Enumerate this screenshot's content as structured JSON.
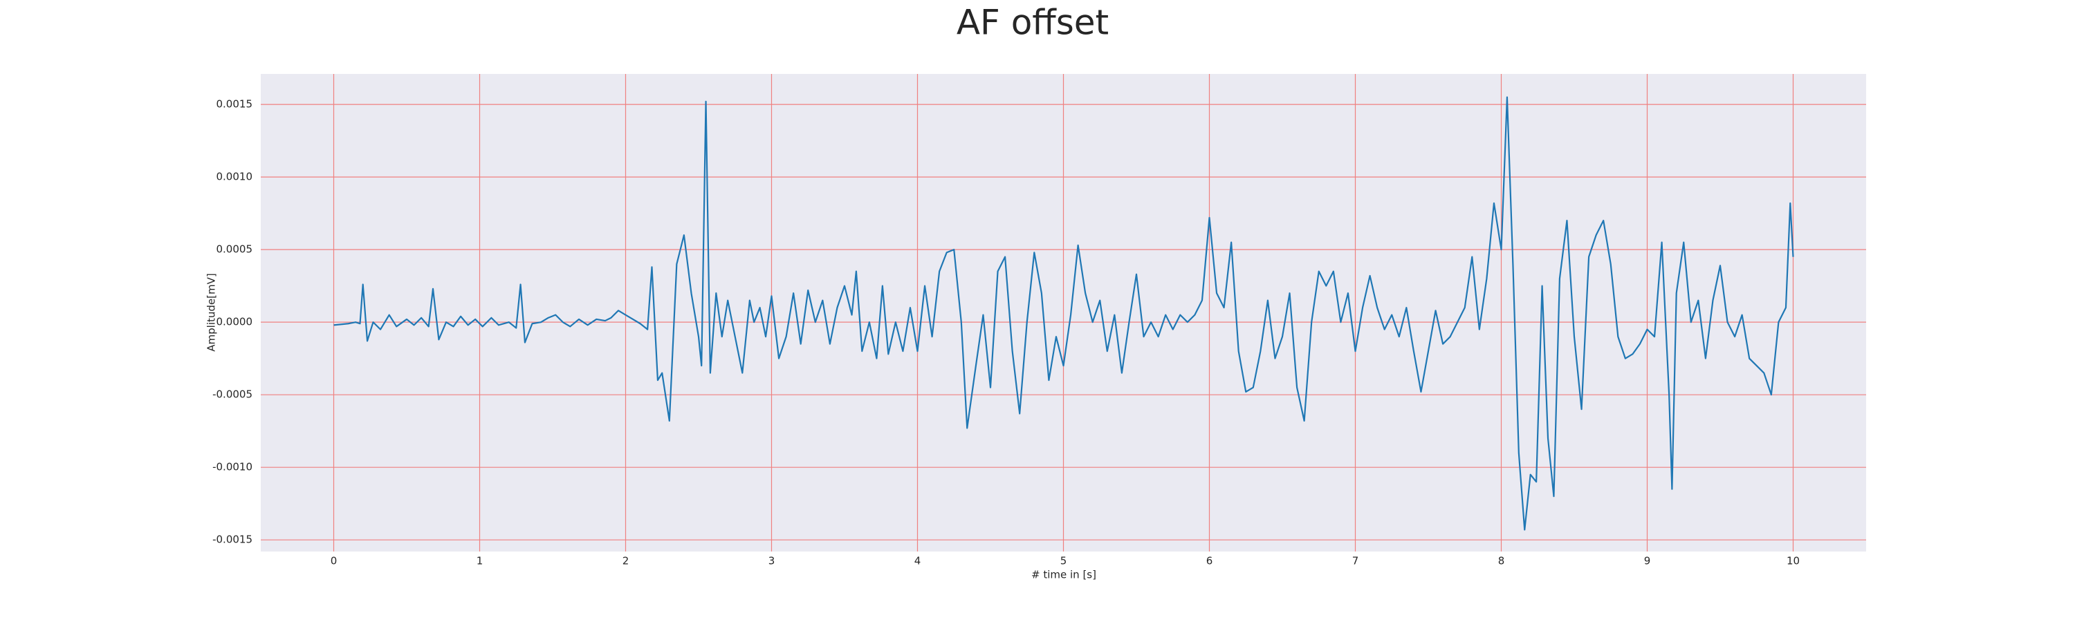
{
  "chart_data": {
    "type": "line",
    "title": "AF offset",
    "xlabel": "# time in [s]",
    "ylabel": "Amplitude[mV]",
    "x": [
      0,
      0.1,
      0.15,
      0.18,
      0.2,
      0.23,
      0.27,
      0.32,
      0.38,
      0.43,
      0.5,
      0.55,
      0.6,
      0.65,
      0.68,
      0.72,
      0.77,
      0.82,
      0.87,
      0.92,
      0.97,
      1.02,
      1.08,
      1.13,
      1.2,
      1.25,
      1.28,
      1.31,
      1.36,
      1.42,
      1.47,
      1.52,
      1.57,
      1.62,
      1.68,
      1.74,
      1.8,
      1.86,
      1.9,
      1.95,
      2.0,
      2.05,
      2.1,
      2.15,
      2.18,
      2.22,
      2.25,
      2.3,
      2.35,
      2.4,
      2.45,
      2.5,
      2.52,
      2.55,
      2.58,
      2.62,
      2.66,
      2.7,
      2.75,
      2.8,
      2.85,
      2.88,
      2.92,
      2.96,
      3.0,
      3.05,
      3.1,
      3.15,
      3.2,
      3.25,
      3.3,
      3.35,
      3.4,
      3.45,
      3.5,
      3.55,
      3.58,
      3.62,
      3.67,
      3.72,
      3.76,
      3.8,
      3.85,
      3.9,
      3.95,
      4.0,
      4.05,
      4.1,
      4.15,
      4.2,
      4.25,
      4.3,
      4.34,
      4.4,
      4.45,
      4.5,
      4.55,
      4.6,
      4.65,
      4.7,
      4.75,
      4.8,
      4.85,
      4.9,
      4.95,
      5.0,
      5.05,
      5.1,
      5.15,
      5.2,
      5.25,
      5.3,
      5.35,
      5.4,
      5.45,
      5.5,
      5.55,
      5.6,
      5.65,
      5.7,
      5.75,
      5.8,
      5.85,
      5.9,
      5.95,
      6.0,
      6.05,
      6.1,
      6.15,
      6.2,
      6.25,
      6.3,
      6.35,
      6.4,
      6.45,
      6.5,
      6.55,
      6.6,
      6.65,
      6.7,
      6.75,
      6.8,
      6.85,
      6.9,
      6.95,
      7.0,
      7.05,
      7.1,
      7.15,
      7.2,
      7.25,
      7.3,
      7.35,
      7.4,
      7.45,
      7.5,
      7.55,
      7.6,
      7.65,
      7.7,
      7.75,
      7.8,
      7.85,
      7.9,
      7.95,
      8.0,
      8.04,
      8.08,
      8.12,
      8.16,
      8.2,
      8.24,
      8.28,
      8.32,
      8.36,
      8.4,
      8.45,
      8.5,
      8.55,
      8.6,
      8.65,
      8.7,
      8.75,
      8.8,
      8.85,
      8.9,
      8.95,
      9.0,
      9.05,
      9.1,
      9.15,
      9.17,
      9.2,
      9.25,
      9.3,
      9.35,
      9.4,
      9.45,
      9.5,
      9.55,
      9.6,
      9.65,
      9.7,
      9.75,
      9.8,
      9.85,
      9.9,
      9.95,
      9.98,
      10.0
    ],
    "values": [
      -2e-05,
      -1e-05,
      0,
      -1e-05,
      0.00026,
      -0.00013,
      0,
      -5e-05,
      5e-05,
      -3e-05,
      2e-05,
      -2e-05,
      3e-05,
      -3e-05,
      0.00023,
      -0.00012,
      0,
      -3e-05,
      4e-05,
      -2e-05,
      2e-05,
      -3e-05,
      3e-05,
      -2e-05,
      0,
      -4e-05,
      0.00026,
      -0.00014,
      -1e-05,
      0,
      3e-05,
      5e-05,
      0,
      -3e-05,
      2e-05,
      -2e-05,
      2e-05,
      1e-05,
      3e-05,
      8e-05,
      5e-05,
      2e-05,
      -1e-05,
      -5e-05,
      0.00038,
      -0.0004,
      -0.00035,
      -0.00068,
      0.0004,
      0.0006,
      0.0002,
      -0.0001,
      -0.0003,
      0.00152,
      -0.00035,
      0.0002,
      -0.0001,
      0.00015,
      -0.0001,
      -0.00035,
      0.00015,
      0,
      0.0001,
      -0.0001,
      0.00018,
      -0.00025,
      -0.0001,
      0.0002,
      -0.00015,
      0.00022,
      0,
      0.00015,
      -0.00015,
      0.0001,
      0.00025,
      5e-05,
      0.00035,
      -0.0002,
      0,
      -0.00025,
      0.00025,
      -0.00022,
      0,
      -0.0002,
      0.0001,
      -0.0002,
      0.00025,
      -0.0001,
      0.00035,
      0.00048,
      0.0005,
      0,
      -0.00073,
      -0.0003,
      5e-05,
      -0.00045,
      0.00035,
      0.00045,
      -0.0002,
      -0.00063,
      0,
      0.00048,
      0.0002,
      -0.0004,
      -0.0001,
      -0.0003,
      5e-05,
      0.00053,
      0.0002,
      0,
      0.00015,
      -0.0002,
      5e-05,
      -0.00035,
      0,
      0.00033,
      -0.0001,
      0,
      -0.0001,
      5e-05,
      -5e-05,
      5e-05,
      0,
      5e-05,
      0.00015,
      0.00072,
      0.0002,
      0.0001,
      0.00055,
      -0.0002,
      -0.00048,
      -0.00045,
      -0.0002,
      0.00015,
      -0.00025,
      -0.0001,
      0.0002,
      -0.00045,
      -0.00068,
      0,
      0.00035,
      0.00025,
      0.00035,
      0,
      0.0002,
      -0.0002,
      0.0001,
      0.00032,
      0.0001,
      -5e-05,
      5e-05,
      -0.0001,
      0.0001,
      -0.0002,
      -0.00048,
      -0.0002,
      8e-05,
      -0.00015,
      -0.0001,
      0,
      0.0001,
      0.00045,
      -5e-05,
      0.0003,
      0.00082,
      0.0005,
      0.00155,
      0.0004,
      -0.0009,
      -0.00143,
      -0.00105,
      -0.0011,
      0.00025,
      -0.0008,
      -0.0012,
      0.0003,
      0.0007,
      -0.0001,
      -0.0006,
      0.00045,
      0.0006,
      0.0007,
      0.0004,
      -0.0001,
      -0.00025,
      -0.00022,
      -0.00015,
      -5e-05,
      -0.0001,
      0.00055,
      -0.0005,
      -0.00115,
      0.0002,
      0.00055,
      0,
      0.00015,
      -0.00025,
      0.00015,
      0.00039,
      0,
      -0.0001,
      5e-05,
      -0.00025,
      -0.0003,
      -0.00035,
      -0.0005,
      0,
      0.0001,
      0.00082,
      0.00045
    ],
    "color": "#1f77b4",
    "xlim": [
      -0.5,
      10.5
    ],
    "xticks": [
      0,
      1,
      2,
      3,
      4,
      5,
      6,
      7,
      8,
      9,
      10
    ],
    "ylim": [
      -0.00158,
      0.00171
    ],
    "yticks": [
      {
        "value": -0.0015,
        "label": "-0.0015"
      },
      {
        "value": -0.001,
        "label": "-0.0010"
      },
      {
        "value": -0.0005,
        "label": "-0.0005"
      },
      {
        "value": 0,
        "label": "0.0000"
      },
      {
        "value": 0.0005,
        "label": "0.0005"
      },
      {
        "value": 0.001,
        "label": "0.0010"
      },
      {
        "value": 0.0015,
        "label": "0.0015"
      }
    ],
    "grid": true,
    "grid_color": "#f08080",
    "background": "#eaeaf2"
  }
}
